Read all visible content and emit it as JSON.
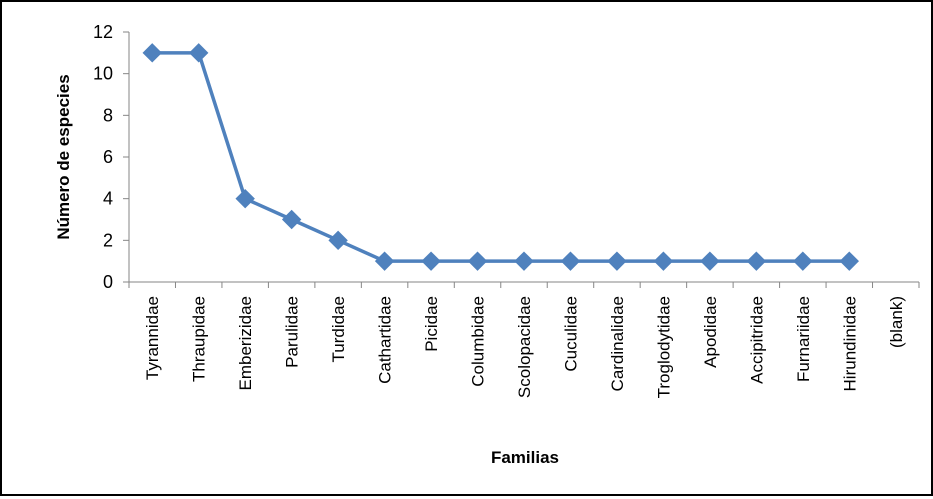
{
  "chart_data": {
    "type": "line",
    "title": "",
    "xlabel": "Familias",
    "ylabel": "Número de especies",
    "categories": [
      "Tyrannidae",
      "Thraupidae",
      "Emberizidae",
      "Parulidae",
      "Turdidae",
      "Cathartidae",
      "Picidae",
      "Columbidae",
      "Scolopacidae",
      "Cuculidae",
      "Cardinalidae",
      "Troglodytidae",
      "Apodidae",
      "Accipitridae",
      "Furnariidae",
      "Hirundinidae",
      "(blank)"
    ],
    "series": [
      {
        "values": [
          11,
          11,
          4,
          3,
          2,
          1,
          1,
          1,
          1,
          1,
          1,
          1,
          1,
          1,
          1,
          1,
          null
        ]
      }
    ],
    "yticks": [
      "0",
      "2",
      "4",
      "6",
      "8",
      "10",
      "12"
    ],
    "ylim": [
      0,
      12
    ],
    "grid": false,
    "legend": "none",
    "series_color": "#4F81BD",
    "marker": "diamond"
  }
}
